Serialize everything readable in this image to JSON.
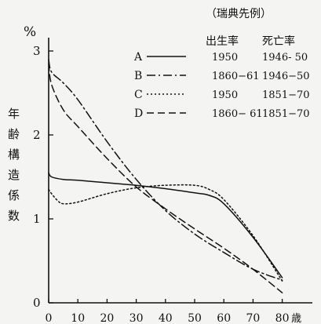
{
  "chart_data": {
    "type": "line",
    "title": "（瑞典先例）",
    "y_unit": "%",
    "ylabel": "年齢構造係数",
    "x_unit": "歳",
    "x_ticks": [
      "0",
      "10",
      "20",
      "30",
      "40",
      "50",
      "60",
      "70",
      "80"
    ],
    "y_ticks": [
      "0",
      "1",
      "2",
      "3"
    ],
    "xlim": [
      0,
      85
    ],
    "ylim": [
      0,
      3
    ],
    "legend_position": "top-right",
    "legend_header": {
      "birth_rate": "出生率",
      "death_rate": "死亡率"
    },
    "series": [
      {
        "name": "A",
        "birth": "1950",
        "death": "1946- 50",
        "dash": "solid",
        "x": [
          0,
          1,
          5,
          10,
          20,
          30,
          40,
          50,
          55,
          60,
          70,
          80
        ],
        "y": [
          1.55,
          1.5,
          1.47,
          1.46,
          1.43,
          1.4,
          1.36,
          1.31,
          1.28,
          1.18,
          0.78,
          0.3
        ]
      },
      {
        "name": "B",
        "birth": "1860−61",
        "death": "1946−50",
        "dash": "dashdot",
        "x": [
          0,
          1,
          5,
          10,
          20,
          30,
          40,
          50,
          60,
          70,
          80
        ],
        "y": [
          2.9,
          2.75,
          2.62,
          2.42,
          1.92,
          1.47,
          1.1,
          0.82,
          0.6,
          0.4,
          0.27
        ]
      },
      {
        "name": "C",
        "birth": "1950",
        "death": "1851−70",
        "dash": "dotted",
        "x": [
          0,
          1,
          3,
          5,
          10,
          20,
          30,
          40,
          50,
          55,
          60,
          70,
          80
        ],
        "y": [
          1.35,
          1.3,
          1.22,
          1.18,
          1.2,
          1.3,
          1.37,
          1.4,
          1.4,
          1.35,
          1.23,
          0.8,
          0.26
        ]
      },
      {
        "name": "D",
        "birth": "1860− 61",
        "death": "1851−70",
        "dash": "dashed",
        "x": [
          0,
          1,
          5,
          10,
          20,
          30,
          40,
          50,
          60,
          70,
          80
        ],
        "y": [
          2.85,
          2.6,
          2.3,
          2.1,
          1.72,
          1.38,
          1.12,
          0.88,
          0.65,
          0.4,
          0.12
        ]
      }
    ]
  }
}
